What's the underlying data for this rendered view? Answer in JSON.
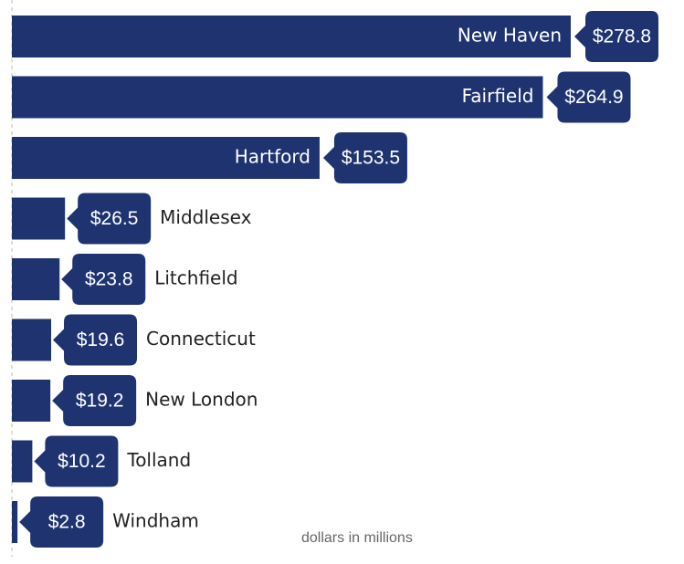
{
  "chart_data": {
    "type": "bar",
    "orientation": "horizontal",
    "categories": [
      "New Haven",
      "Fairfield",
      "Hartford",
      "Middlesex",
      "Litchfield",
      "Connecticut",
      "New London",
      "Tolland",
      "Windham"
    ],
    "values": [
      278.8,
      264.9,
      153.5,
      26.5,
      23.8,
      19.6,
      19.2,
      10.2,
      2.8
    ],
    "value_labels": [
      "$278.8",
      "$264.9",
      "$153.5",
      "$26.5",
      "$23.8",
      "$19.6",
      "$19.2",
      "$10.2",
      "$2.8"
    ],
    "color": "#1f3370",
    "annotation": "dollars in millions"
  }
}
